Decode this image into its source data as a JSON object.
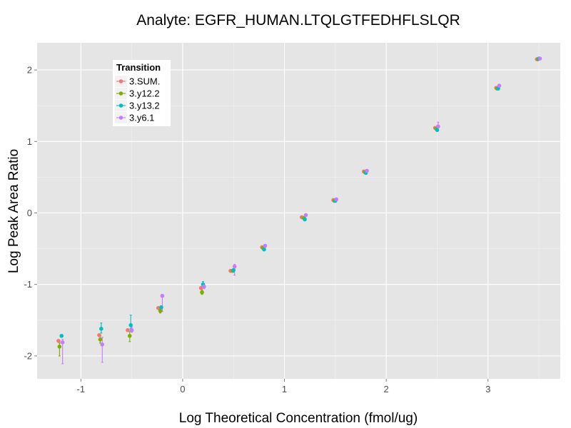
{
  "chart_data": {
    "type": "scatter",
    "title": "Analyte: EGFR_HUMAN.LTQLGTFEDHFLSLQR",
    "xlabel": "Log Theoretical Concentration (fmol/ug)",
    "ylabel": "Log Peak Area Ratio",
    "xlim": [
      -1.43,
      3.71
    ],
    "ylim": [
      -2.32,
      2.38
    ],
    "x_ticks": [
      -1,
      0,
      1,
      2,
      3
    ],
    "y_ticks": [
      -2,
      -1,
      0,
      1,
      2
    ],
    "x_tick_labels": [
      "-1",
      "0",
      "1",
      "2",
      "3"
    ],
    "y_tick_labels": [
      "-2",
      "-1",
      "0",
      "1",
      "2"
    ],
    "grid": true,
    "legend": {
      "title": "Transition",
      "position": "top-left"
    },
    "series": [
      {
        "name": "3.SUM.",
        "color": "#F8766D",
        "points": [
          {
            "x": -1.22,
            "y": -1.79,
            "lo": -1.79,
            "hi": -1.79
          },
          {
            "x": -0.82,
            "y": -1.71,
            "lo": -1.71,
            "hi": -1.71
          },
          {
            "x": -0.54,
            "y": -1.64,
            "lo": -1.64,
            "hi": -1.64
          },
          {
            "x": -0.24,
            "y": -1.33,
            "lo": -1.33,
            "hi": -1.33
          },
          {
            "x": 0.18,
            "y": -1.05,
            "lo": -1.05,
            "hi": -1.05
          },
          {
            "x": 0.47,
            "y": -0.81,
            "lo": -0.81,
            "hi": -0.81
          },
          {
            "x": 0.78,
            "y": -0.48,
            "lo": -0.48,
            "hi": -0.48
          },
          {
            "x": 1.17,
            "y": -0.06,
            "lo": -0.06,
            "hi": -0.06
          },
          {
            "x": 1.48,
            "y": 0.18,
            "lo": 0.18,
            "hi": 0.18
          },
          {
            "x": 1.78,
            "y": 0.58,
            "lo": 0.58,
            "hi": 0.58
          },
          {
            "x": 2.48,
            "y": 1.19,
            "lo": 1.19,
            "hi": 1.19
          },
          {
            "x": 3.08,
            "y": 1.75,
            "lo": 1.75,
            "hi": 1.75
          },
          {
            "x": 3.48,
            "y": 2.15,
            "lo": 2.15,
            "hi": 2.15
          }
        ]
      },
      {
        "name": "3.y12.2",
        "color": "#7CAE00",
        "points": [
          {
            "x": -1.21,
            "y": -1.87,
            "lo": -2.0,
            "hi": -1.82
          },
          {
            "x": -0.81,
            "y": -1.77,
            "lo": -1.82,
            "hi": -1.72
          },
          {
            "x": -0.52,
            "y": -1.72,
            "lo": -1.8,
            "hi": -1.66
          },
          {
            "x": -0.22,
            "y": -1.37,
            "lo": -1.4,
            "hi": -1.34
          },
          {
            "x": 0.19,
            "y": -1.11,
            "lo": -1.14,
            "hi": -1.08
          },
          {
            "x": 0.49,
            "y": -0.81,
            "lo": -0.83,
            "hi": -0.79
          },
          {
            "x": 0.79,
            "y": -0.49,
            "lo": -0.51,
            "hi": -0.47
          },
          {
            "x": 1.19,
            "y": -0.07,
            "lo": -0.09,
            "hi": -0.05
          },
          {
            "x": 1.49,
            "y": 0.17,
            "lo": 0.16,
            "hi": 0.18
          },
          {
            "x": 1.79,
            "y": 0.57,
            "lo": 0.56,
            "hi": 0.58
          },
          {
            "x": 2.49,
            "y": 1.18,
            "lo": 1.17,
            "hi": 1.19
          },
          {
            "x": 3.09,
            "y": 1.74,
            "lo": 1.73,
            "hi": 1.75
          },
          {
            "x": 3.49,
            "y": 2.15,
            "lo": 2.14,
            "hi": 2.16
          }
        ]
      },
      {
        "name": "3.y13.2",
        "color": "#00BFC4",
        "points": [
          {
            "x": -1.19,
            "y": -1.72,
            "lo": -1.74,
            "hi": -1.7
          },
          {
            "x": -0.8,
            "y": -1.62,
            "lo": -1.68,
            "hi": -1.54
          },
          {
            "x": -0.51,
            "y": -1.57,
            "lo": -1.62,
            "hi": -1.43
          },
          {
            "x": -0.21,
            "y": -1.32,
            "lo": -1.36,
            "hi": -1.3
          },
          {
            "x": 0.2,
            "y": -1.0,
            "lo": -1.03,
            "hi": -0.96
          },
          {
            "x": 0.5,
            "y": -0.8,
            "lo": -0.83,
            "hi": -0.78
          },
          {
            "x": 0.8,
            "y": -0.51,
            "lo": -0.53,
            "hi": -0.49
          },
          {
            "x": 1.2,
            "y": -0.09,
            "lo": -0.11,
            "hi": -0.07
          },
          {
            "x": 1.5,
            "y": 0.17,
            "lo": 0.16,
            "hi": 0.18
          },
          {
            "x": 1.8,
            "y": 0.56,
            "lo": 0.55,
            "hi": 0.58
          },
          {
            "x": 2.5,
            "y": 1.16,
            "lo": 1.15,
            "hi": 1.18
          },
          {
            "x": 3.1,
            "y": 1.74,
            "lo": 1.73,
            "hi": 1.75
          },
          {
            "x": 3.5,
            "y": 2.16,
            "lo": 2.15,
            "hi": 2.17
          }
        ]
      },
      {
        "name": "3.y6.1",
        "color": "#C77CFF",
        "points": [
          {
            "x": -1.18,
            "y": -1.81,
            "lo": -2.11,
            "hi": -1.77
          },
          {
            "x": -0.79,
            "y": -1.84,
            "lo": -2.09,
            "hi": -1.74
          },
          {
            "x": -0.5,
            "y": -1.64,
            "lo": -1.67,
            "hi": -1.6
          },
          {
            "x": -0.2,
            "y": -1.16,
            "lo": -1.38,
            "hi": -1.14
          },
          {
            "x": 0.21,
            "y": -1.03,
            "lo": -1.06,
            "hi": -1.0
          },
          {
            "x": 0.51,
            "y": -0.75,
            "lo": -0.87,
            "hi": -0.72
          },
          {
            "x": 0.81,
            "y": -0.46,
            "lo": -0.48,
            "hi": -0.44
          },
          {
            "x": 1.21,
            "y": -0.03,
            "lo": -0.05,
            "hi": -0.01
          },
          {
            "x": 1.51,
            "y": 0.19,
            "lo": 0.18,
            "hi": 0.2
          },
          {
            "x": 1.81,
            "y": 0.59,
            "lo": 0.58,
            "hi": 0.6
          },
          {
            "x": 2.51,
            "y": 1.21,
            "lo": 1.19,
            "hi": 1.27
          },
          {
            "x": 3.11,
            "y": 1.78,
            "lo": 1.76,
            "hi": 1.8
          },
          {
            "x": 3.51,
            "y": 2.16,
            "lo": 2.15,
            "hi": 2.17
          }
        ]
      }
    ]
  }
}
